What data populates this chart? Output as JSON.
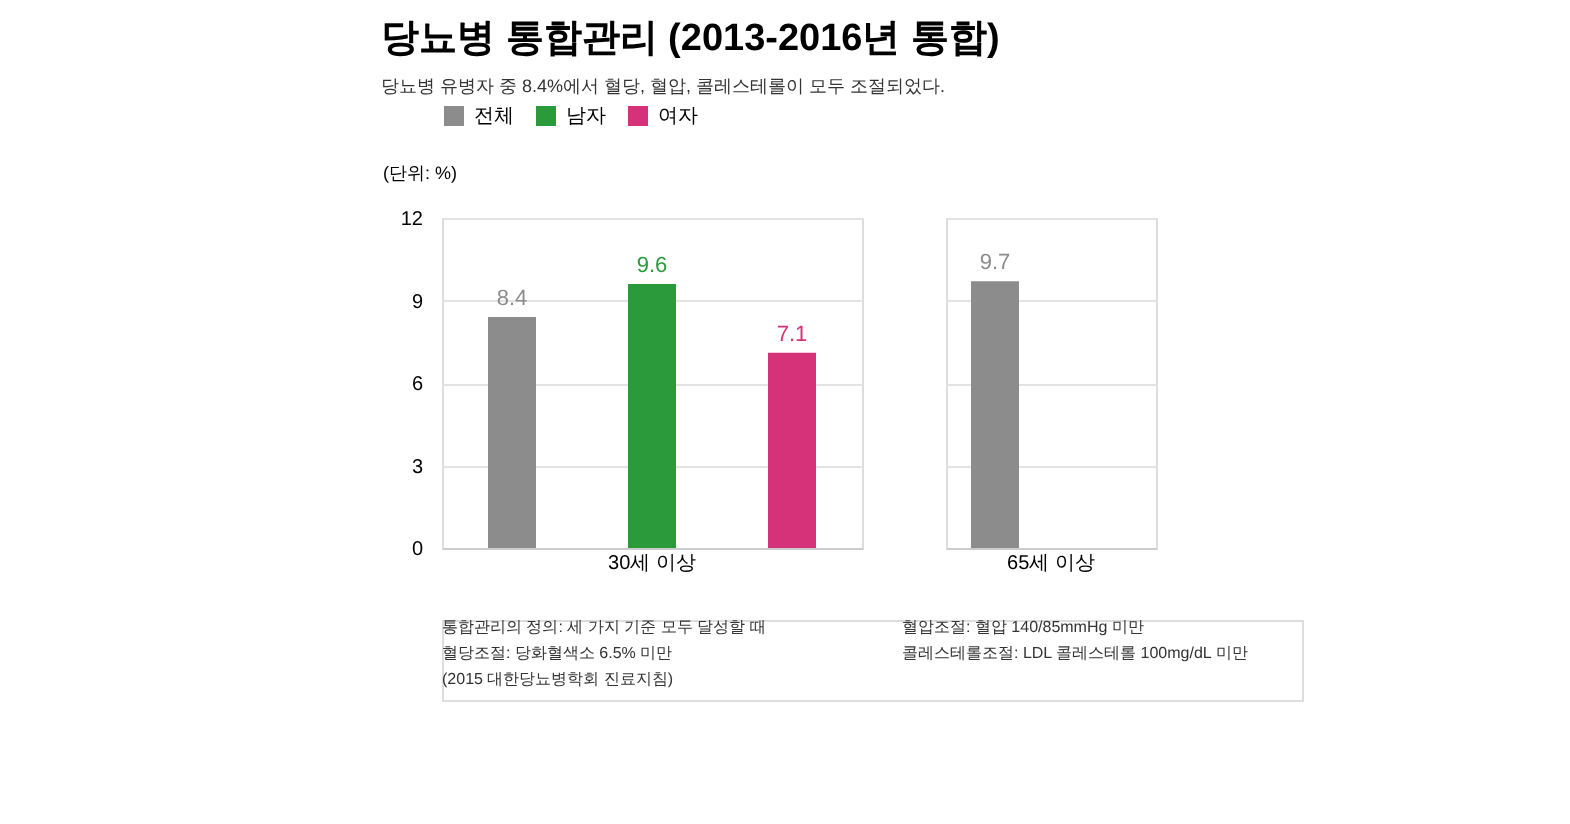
{
  "chart_data": [
    {
      "type": "bar",
      "title": "당뇨병 통합관리 (2013-2016년 통합)",
      "subtitle": "당뇨병 유병자 중 8.4%에서 혈당, 혈압, 콜레스테롤이 모두 조절되었다.",
      "ylabel": "(단위: %)",
      "categories": [
        "30세 이상"
      ],
      "series": [
        {
          "name": "전체",
          "color": "#8c8c8c",
          "values": [
            8.4
          ]
        },
        {
          "name": "남자",
          "color": "#2a9a3a",
          "values": [
            9.6
          ]
        },
        {
          "name": "여자",
          "color": "#d6327a",
          "values": [
            7.1
          ]
        }
      ],
      "ylim": [
        0,
        12
      ],
      "yticks": [
        0,
        3,
        6,
        9,
        12
      ],
      "grid": "y",
      "legend": "top",
      "data_labels": true,
      "annotations": [
        "통합관리의 정의: 세 가지 기준 모두 달성할 때",
        "혈당조절: 당화혈색소 6.5% 미만",
        "(2015 대한당뇨병학회 진료지침)",
        "혈압조절: 혈압 140/85mmHg 미만",
        "콜레스테롤조절: LDL 콜레스테롤 100mg/dL 미만"
      ]
    },
    {
      "type": "bar",
      "categories": [
        "65세 이상"
      ],
      "series": [
        {
          "name": "전체",
          "color": "#8c8c8c",
          "values": [
            9.7
          ]
        }
      ],
      "ylim": [
        0,
        12
      ],
      "yticks": [
        0,
        3,
        6,
        9,
        12
      ],
      "grid": "y",
      "tick_labels": "x",
      "data_labels": true
    }
  ]
}
